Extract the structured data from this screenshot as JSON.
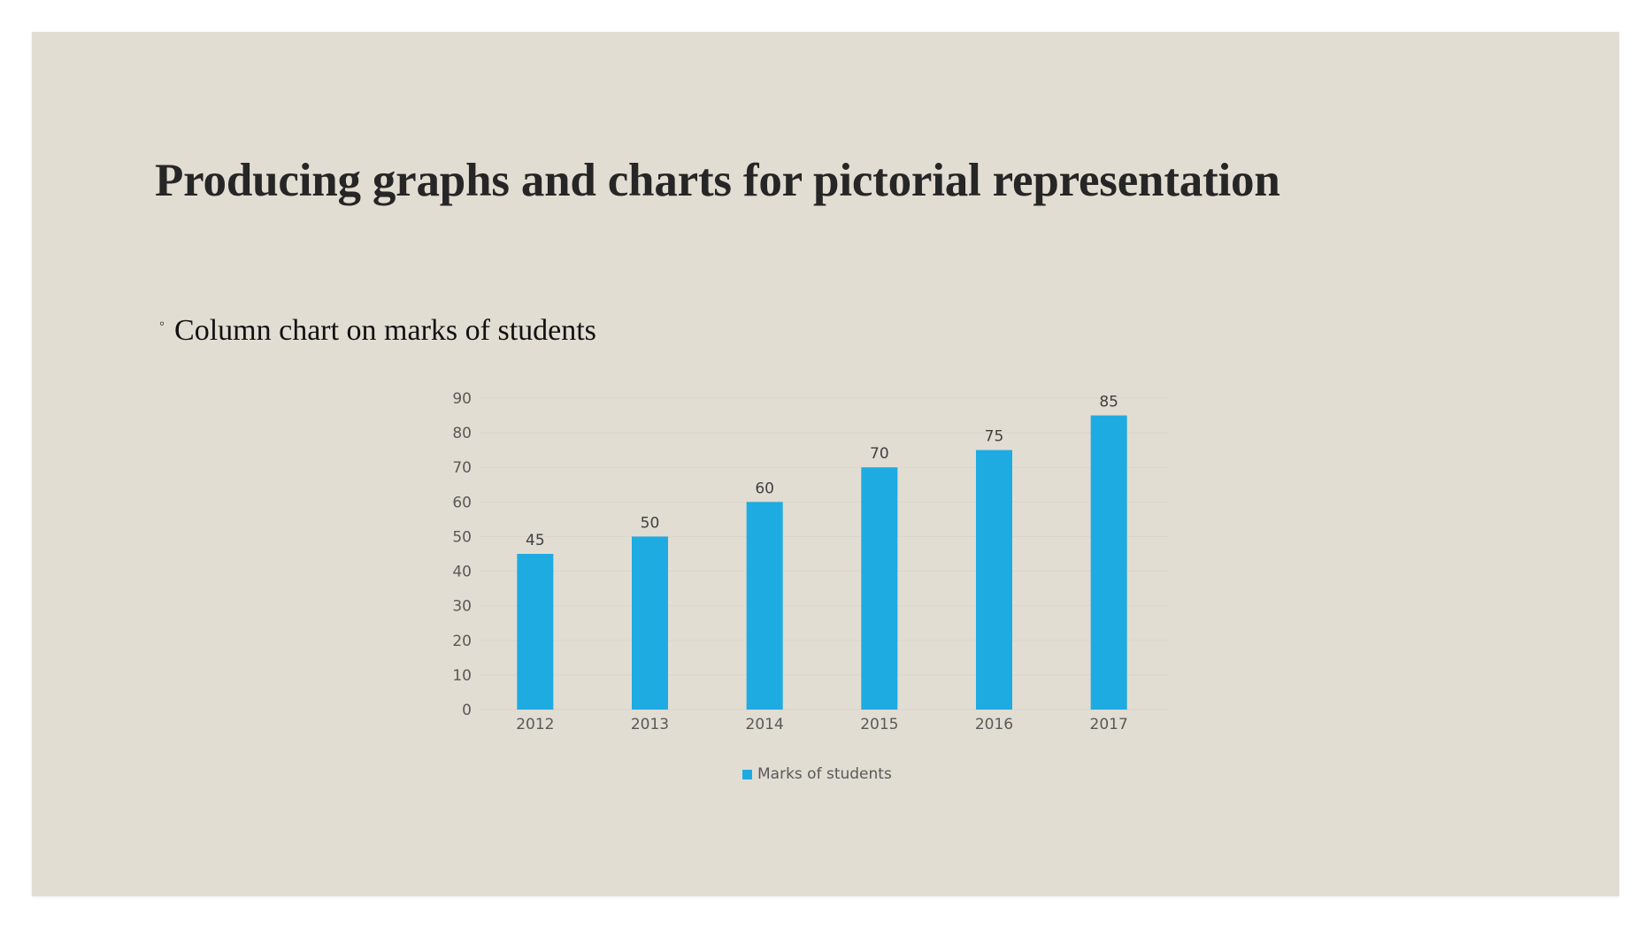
{
  "slide": {
    "title": "Producing graphs and charts for pictorial representation",
    "bullets": [
      {
        "marker": "◦",
        "text": "Column chart on marks of students"
      }
    ],
    "background_color": "#e2ddd2"
  },
  "legend": {
    "label": "Marks of students",
    "color": "#1eabe2"
  },
  "chart_data": {
    "type": "bar",
    "title": "",
    "xlabel": "",
    "ylabel": "",
    "categories": [
      "2012",
      "2013",
      "2014",
      "2015",
      "2016",
      "2017"
    ],
    "series": [
      {
        "name": "Marks of students",
        "values": [
          45,
          50,
          60,
          70,
          75,
          85
        ],
        "color": "#1eabe2"
      }
    ],
    "data_labels": [
      "45",
      "50",
      "60",
      "70",
      "75",
      "85"
    ],
    "y_ticks": [
      "0",
      "10",
      "20",
      "30",
      "40",
      "50",
      "60",
      "70",
      "80",
      "90"
    ],
    "ylim": [
      0,
      90
    ],
    "grid": true,
    "legend_position": "bottom"
  }
}
